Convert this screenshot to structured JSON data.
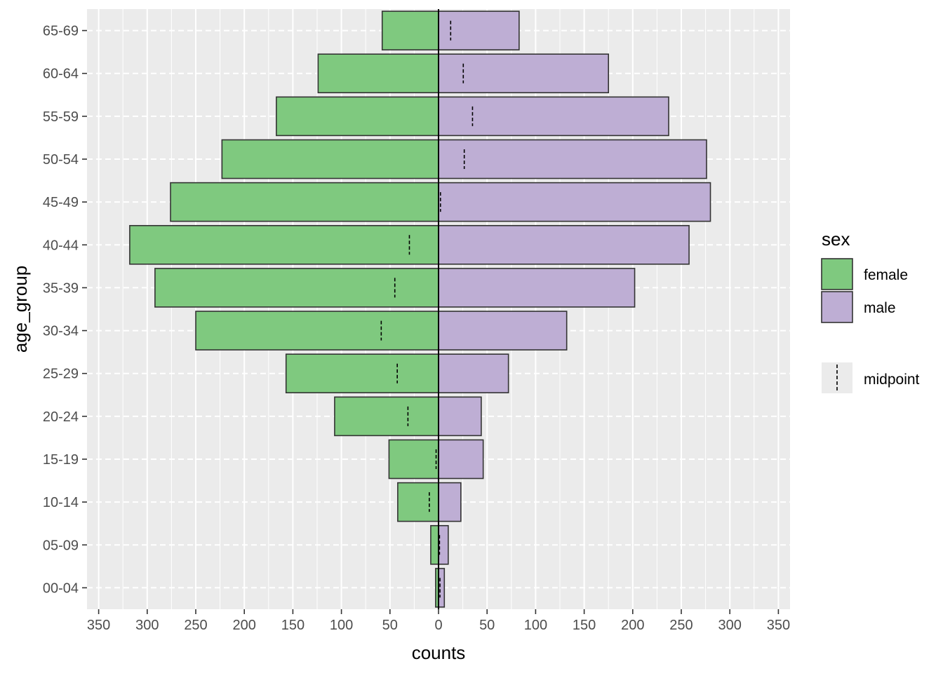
{
  "chart_data": {
    "type": "bar",
    "orientation": "horizontal",
    "layout": "population-pyramid",
    "xlabel": "counts",
    "ylabel": "age_group",
    "xlim": [
      -362,
      362
    ],
    "x_ticks": [
      -350,
      -300,
      -250,
      -200,
      -150,
      -100,
      -50,
      0,
      50,
      100,
      150,
      200,
      250,
      300,
      350
    ],
    "x_tick_labels": [
      "350",
      "300",
      "250",
      "200",
      "150",
      "100",
      "50",
      "0",
      "50",
      "100",
      "150",
      "200",
      "250",
      "300",
      "350"
    ],
    "categories": [
      "00-04",
      "05-09",
      "10-14",
      "15-19",
      "20-24",
      "25-29",
      "30-34",
      "35-39",
      "40-44",
      "45-49",
      "50-54",
      "55-59",
      "60-64",
      "65-69"
    ],
    "series": [
      {
        "name": "female",
        "color": "#7FC97F",
        "values": [
          3,
          8,
          42,
          51,
          107,
          157,
          250,
          292,
          318,
          276,
          223,
          167,
          124,
          58
        ]
      },
      {
        "name": "male",
        "color": "#BEAED4",
        "values": [
          6,
          10,
          23,
          46,
          44,
          72,
          132,
          202,
          258,
          280,
          276,
          237,
          175,
          83
        ]
      }
    ],
    "midpoint": {
      "name": "midpoint",
      "style": "dashed",
      "values": [
        1.5,
        1,
        -9.5,
        -2.5,
        -31.5,
        -42.5,
        -59,
        -45,
        -30,
        2,
        26.5,
        35,
        25.5,
        12.5
      ]
    },
    "legend": {
      "title": "sex",
      "position": "right",
      "items": [
        "female",
        "male"
      ],
      "line_item": "midpoint"
    },
    "grid": true,
    "panel_background": "#EBEBEB",
    "bar_outline": "#333333",
    "center_line": true
  }
}
